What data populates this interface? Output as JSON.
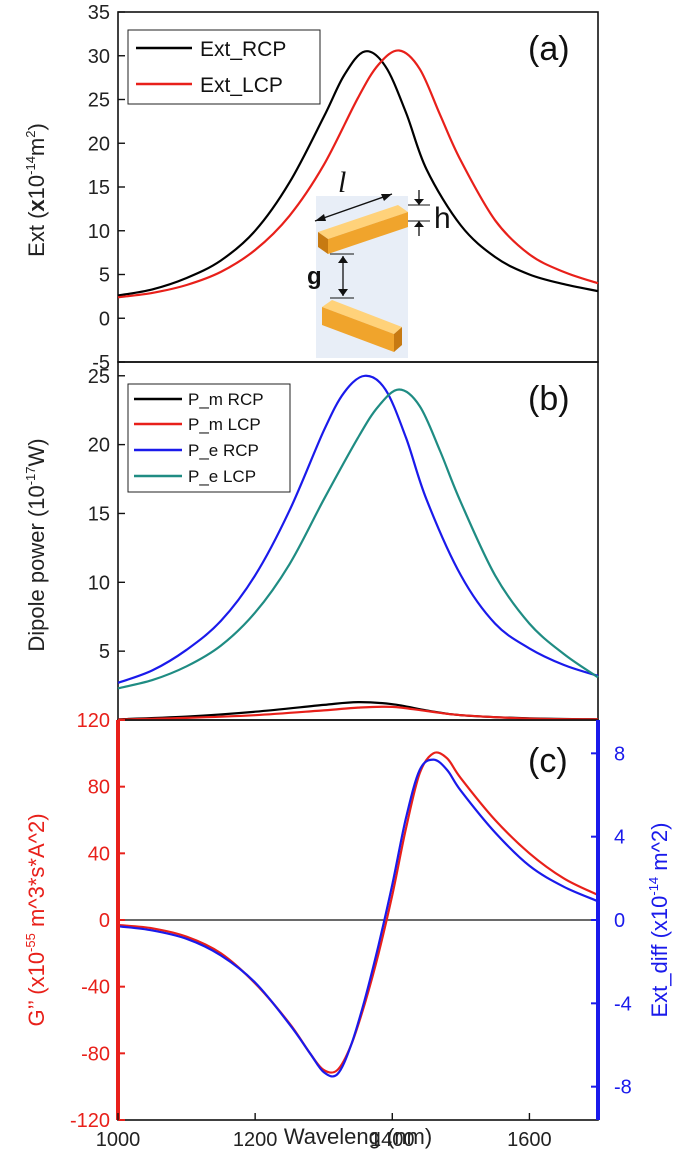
{
  "chart_data": [
    {
      "id": "a",
      "type": "line",
      "panel_label": "(a)",
      "ylabel_main": "Ext (",
      "ylabel_x": "x",
      "ylabel_mid": "10",
      "ylabel_exp": "-14",
      "ylabel_unit": "m",
      "ylabel_exp2": "2",
      "ylabel_close": ")",
      "ylim": [
        -5,
        35
      ],
      "yticks": [
        -5,
        0,
        5,
        10,
        15,
        20,
        25,
        30,
        35
      ],
      "xlim": [
        1000,
        1700
      ],
      "series": [
        {
          "name": "Ext_RCP",
          "color": "#000000",
          "x": [
            1000,
            1050,
            1100,
            1150,
            1200,
            1250,
            1300,
            1330,
            1360,
            1390,
            1420,
            1450,
            1500,
            1550,
            1600,
            1650,
            1700
          ],
          "y": [
            2.6,
            3.3,
            4.6,
            6.6,
            10,
            15.5,
            23,
            27.8,
            30.5,
            28.8,
            23.5,
            17,
            10.6,
            7,
            5,
            3.9,
            3.1
          ]
        },
        {
          "name": "Ext_LCP",
          "color": "#e8201a",
          "x": [
            1000,
            1050,
            1100,
            1150,
            1200,
            1250,
            1300,
            1350,
            1380,
            1410,
            1440,
            1470,
            1500,
            1550,
            1600,
            1650,
            1700
          ],
          "y": [
            2.4,
            2.9,
            3.8,
            5.3,
            7.8,
            11.7,
            17.5,
            25.2,
            29,
            30.6,
            28.5,
            23.2,
            18,
            11.2,
            7.3,
            5.3,
            4
          ]
        }
      ],
      "inset_labels": {
        "length": "l",
        "height": "h",
        "gap": "g"
      }
    },
    {
      "id": "b",
      "type": "line",
      "panel_label": "(b)",
      "ylabel_main": "Dipole power (10",
      "ylabel_exp": "-17",
      "ylabel_close": "W)",
      "ylim": [
        0,
        26
      ],
      "yticks": [
        5,
        10,
        15,
        20,
        25
      ],
      "xlim": [
        1000,
        1700
      ],
      "series": [
        {
          "name": "P_m RCP",
          "color": "#000000",
          "x": [
            1000,
            1100,
            1200,
            1300,
            1350,
            1400,
            1450,
            1500,
            1600,
            1700
          ],
          "y": [
            0.05,
            0.25,
            0.6,
            1.1,
            1.3,
            1.15,
            0.7,
            0.35,
            0.12,
            0.05
          ]
        },
        {
          "name": "P_m LCP",
          "color": "#e8201a",
          "x": [
            1000,
            1100,
            1200,
            1300,
            1350,
            1400,
            1450,
            1500,
            1600,
            1700
          ],
          "y": [
            0.03,
            0.15,
            0.35,
            0.7,
            0.9,
            0.95,
            0.65,
            0.35,
            0.1,
            0.04
          ]
        },
        {
          "name": "P_e RCP",
          "color": "#1a1aeb",
          "x": [
            1000,
            1050,
            1100,
            1150,
            1200,
            1250,
            1300,
            1330,
            1360,
            1390,
            1420,
            1450,
            1500,
            1550,
            1600,
            1650,
            1700
          ],
          "y": [
            2.7,
            3.6,
            5.1,
            7.2,
            10.5,
            15.2,
            21,
            23.8,
            25,
            24,
            20.5,
            16,
            10.5,
            7,
            5.2,
            4,
            3.2
          ]
        },
        {
          "name": "P_e LCP",
          "color": "#1f8c83",
          "x": [
            1000,
            1050,
            1100,
            1150,
            1200,
            1250,
            1300,
            1350,
            1380,
            1410,
            1440,
            1470,
            1500,
            1550,
            1600,
            1650,
            1700
          ],
          "y": [
            2.3,
            2.9,
            3.9,
            5.4,
            7.8,
            11.3,
            16,
            20.5,
            22.8,
            24,
            22.8,
            19.5,
            15.8,
            10.5,
            7,
            4.8,
            3.1
          ]
        }
      ]
    },
    {
      "id": "c",
      "type": "line",
      "panel_label": "(c)",
      "xlabel": "Waveleng (nm)",
      "xticks": [
        1000,
        1200,
        1400,
        1600
      ],
      "xlim": [
        1000,
        1700
      ],
      "ylabel_left_1": "G’’  (x10",
      "ylabel_left_exp": "-55",
      "ylabel_left_2": " m^3*s*A^2)",
      "ylim_left": [
        -120,
        120
      ],
      "yticks_left": [
        -120,
        -80,
        -40,
        0,
        40,
        80,
        120
      ],
      "ylabel_right_1": "Ext_diff (x10",
      "ylabel_right_exp": "-14",
      "ylabel_right_2": " m^2)",
      "ylim_right": [
        -9.6,
        9.6
      ],
      "yticks_right": [
        -8,
        -4,
        0,
        4,
        8
      ],
      "zero_line": true,
      "series": [
        {
          "name": "G''",
          "axis": "left",
          "color": "#e8201a",
          "x": [
            1000,
            1050,
            1100,
            1150,
            1200,
            1250,
            1280,
            1300,
            1320,
            1340,
            1360,
            1380,
            1400,
            1420,
            1440,
            1460,
            1480,
            1500,
            1550,
            1600,
            1650,
            1700
          ],
          "y": [
            -3,
            -5,
            -10,
            -20,
            -38,
            -62,
            -80,
            -90,
            -90,
            -75,
            -50,
            -20,
            15,
            55,
            88,
            100,
            97,
            85,
            60,
            40,
            25,
            15
          ]
        },
        {
          "name": "Ext_diff",
          "axis": "right",
          "color": "#1a1aeb",
          "x": [
            1000,
            1050,
            1100,
            1150,
            1200,
            1250,
            1280,
            1300,
            1320,
            1340,
            1360,
            1380,
            1400,
            1420,
            1440,
            1460,
            1480,
            1500,
            1550,
            1600,
            1650,
            1700
          ],
          "y": [
            -0.3,
            -0.5,
            -0.9,
            -1.7,
            -3,
            -5,
            -6.4,
            -7.3,
            -7.4,
            -6,
            -3.8,
            -1.2,
            1.7,
            4.9,
            7.2,
            7.7,
            7.2,
            6.2,
            4.2,
            2.6,
            1.6,
            0.9
          ]
        }
      ]
    }
  ]
}
